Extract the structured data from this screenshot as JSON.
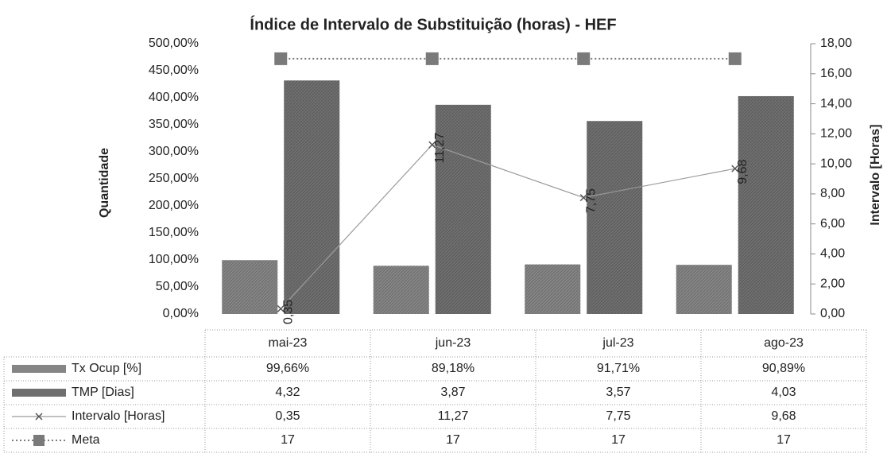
{
  "chart_data": {
    "type": "bar_line_table",
    "title": "Índice de Intervalo de Substituição (horas) - HEF",
    "y_label": "Quantidade",
    "y2_label": "Intervalo [Horas]",
    "categories": [
      "mai-23",
      "jun-23",
      "jul-23",
      "ago-23"
    ],
    "series": [
      {
        "name": "Tx Ocup [%]",
        "kind": "bar",
        "color": "#858585",
        "values": [
          0.9966,
          0.8918,
          0.9171,
          0.9089
        ],
        "value_labels": [
          "99,66%",
          "89,18%",
          "91,71%",
          "90,89%"
        ]
      },
      {
        "name": "TMP [Dias]",
        "kind": "bar",
        "color": "#6f6f6f",
        "values": [
          4.32,
          3.87,
          3.57,
          4.03
        ],
        "value_labels": [
          "4,32",
          "3,87",
          "3,57",
          "4,03"
        ]
      },
      {
        "name": "Intervalo [Horas]",
        "kind": "line",
        "axis": "y2",
        "color": "#9a9a9a",
        "values": [
          0.35,
          11.27,
          7.75,
          9.68
        ],
        "value_labels": [
          "0,35",
          "11,27",
          "7,75",
          "9,68"
        ]
      },
      {
        "name": "Meta",
        "kind": "dotted",
        "axis": "y2",
        "color": "#7a7a7a",
        "values": [
          17,
          17,
          17,
          17
        ]
      }
    ],
    "ylim": [
      0,
      5
    ],
    "yticks": [
      {
        "value": 0,
        "label": "0,00%"
      },
      {
        "value": 0.5,
        "label": "50,00%"
      },
      {
        "value": 1,
        "label": "100,00%"
      },
      {
        "value": 1.5,
        "label": "150,00%"
      },
      {
        "value": 2,
        "label": "200,00%"
      },
      {
        "value": 2.5,
        "label": "250,00%"
      },
      {
        "value": 3,
        "label": "300,00%"
      },
      {
        "value": 3.5,
        "label": "350,00%"
      },
      {
        "value": 4,
        "label": "400,00%"
      },
      {
        "value": 4.5,
        "label": "450,00%"
      },
      {
        "value": 5,
        "label": "500,00%"
      }
    ],
    "y2lim": [
      0,
      18
    ],
    "y2ticks": [
      {
        "value": 0,
        "label": "0,00"
      },
      {
        "value": 2,
        "label": "2,00"
      },
      {
        "value": 4,
        "label": "4,00"
      },
      {
        "value": 6,
        "label": "6,00"
      },
      {
        "value": 8,
        "label": "8,00"
      },
      {
        "value": 10,
        "label": "10,00"
      },
      {
        "value": 12,
        "label": "12,00"
      },
      {
        "value": 14,
        "label": "14,00"
      },
      {
        "value": 16,
        "label": "16,00"
      },
      {
        "value": 18,
        "label": "18,00"
      }
    ]
  }
}
